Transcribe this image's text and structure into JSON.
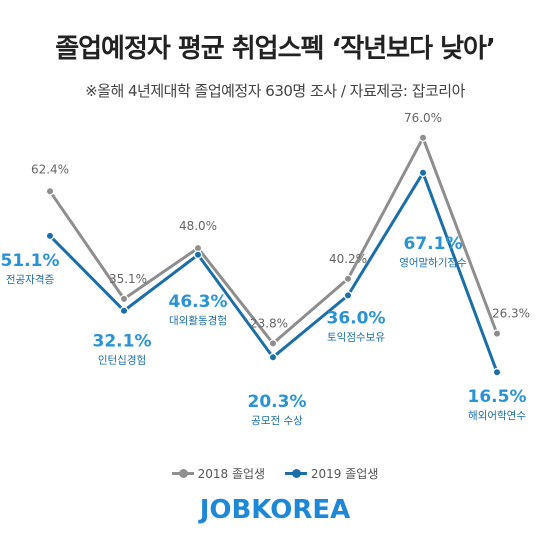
{
  "title": "졸업예정자 평균 취업스펙 ‘작년보다 낮아’",
  "subtitle": "※올해 4년제대학 졸업예정자 630명 조사  / 자료제공: 잡코리아",
  "logo": "JOBKOREA",
  "colors": {
    "series_2018": "#8e8e8e",
    "series_2019": "#1b6ea8",
    "label_2019": "#2a93d5"
  },
  "chart_data": {
    "type": "line",
    "title": "졸업예정자 평균 취업스펙 ‘작년보다 낮아’",
    "categories": [
      "전공자격증",
      "인턴십경험",
      "대외활동경험",
      "공모전 수상",
      "토익점수보유",
      "영어말하기점수",
      "해외어학연수"
    ],
    "series": [
      {
        "name": "2018 졸업생",
        "values": [
          62.4,
          35.1,
          48.0,
          23.8,
          40.2,
          76.0,
          26.3
        ],
        "labels": [
          "62.4%",
          "35.1%",
          "48.0%",
          "23.8%",
          "40.2%",
          "76.0%",
          "26.3%"
        ]
      },
      {
        "name": "2019 졸업생",
        "values": [
          51.1,
          32.1,
          46.3,
          20.3,
          36.0,
          67.1,
          16.5
        ],
        "labels": [
          "51.1%",
          "32.1%",
          "46.3%",
          "20.3%",
          "36.0%",
          "67.1%",
          "16.5%"
        ]
      }
    ],
    "ylim": [
      0,
      100
    ],
    "grid": false,
    "legend": "bottom"
  }
}
